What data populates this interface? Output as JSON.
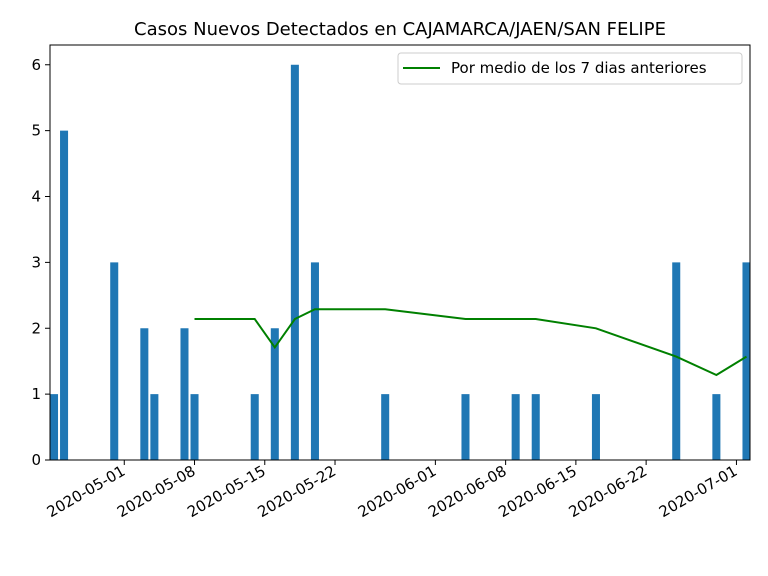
{
  "chart_data": {
    "type": "bar",
    "title": "Casos Nuevos Detectados en CAJAMARCA/JAEN/SAN FELIPE",
    "xlabel": "",
    "ylabel": "",
    "xlim": [
      "2020-04-24",
      "2020-07-02"
    ],
    "ylim": [
      0,
      6.3
    ],
    "grid": false,
    "legend_position": "top-right",
    "x_ticks": [
      "2020-05-01",
      "2020-05-08",
      "2020-05-15",
      "2020-05-22",
      "2020-06-01",
      "2020-06-08",
      "2020-06-15",
      "2020-06-22",
      "2020-07-01"
    ],
    "y_ticks": [
      0,
      1,
      2,
      3,
      4,
      5,
      6
    ],
    "bar_color": "#1f77b4",
    "bars": [
      {
        "date": "2020-04-24",
        "value": 1
      },
      {
        "date": "2020-04-25",
        "value": 5
      },
      {
        "date": "2020-04-30",
        "value": 3
      },
      {
        "date": "2020-05-03",
        "value": 2
      },
      {
        "date": "2020-05-04",
        "value": 1
      },
      {
        "date": "2020-05-07",
        "value": 2
      },
      {
        "date": "2020-05-08",
        "value": 1
      },
      {
        "date": "2020-05-14",
        "value": 1
      },
      {
        "date": "2020-05-16",
        "value": 2
      },
      {
        "date": "2020-05-18",
        "value": 6
      },
      {
        "date": "2020-05-20",
        "value": 3
      },
      {
        "date": "2020-05-27",
        "value": 1
      },
      {
        "date": "2020-06-04",
        "value": 1
      },
      {
        "date": "2020-06-09",
        "value": 1
      },
      {
        "date": "2020-06-11",
        "value": 1
      },
      {
        "date": "2020-06-17",
        "value": 1
      },
      {
        "date": "2020-06-25",
        "value": 3
      },
      {
        "date": "2020-06-29",
        "value": 1
      },
      {
        "date": "2020-07-02",
        "value": 3
      }
    ],
    "series": [
      {
        "name": "Por medio de los 7 dias anteriores",
        "color": "#008000",
        "points": [
          {
            "date": "2020-05-08",
            "value": 2.14
          },
          {
            "date": "2020-05-14",
            "value": 2.14
          },
          {
            "date": "2020-05-16",
            "value": 1.71
          },
          {
            "date": "2020-05-18",
            "value": 2.14
          },
          {
            "date": "2020-05-20",
            "value": 2.29
          },
          {
            "date": "2020-05-27",
            "value": 2.29
          },
          {
            "date": "2020-06-04",
            "value": 2.14
          },
          {
            "date": "2020-06-09",
            "value": 2.14
          },
          {
            "date": "2020-06-11",
            "value": 2.14
          },
          {
            "date": "2020-06-17",
            "value": 2.0
          },
          {
            "date": "2020-06-25",
            "value": 1.57
          },
          {
            "date": "2020-06-29",
            "value": 1.29
          },
          {
            "date": "2020-07-02",
            "value": 1.57
          }
        ]
      }
    ]
  }
}
